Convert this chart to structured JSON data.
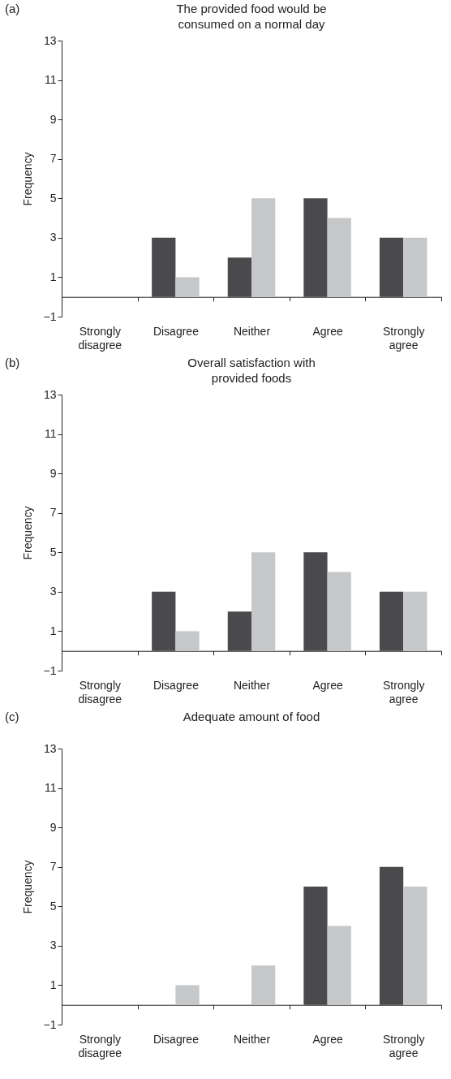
{
  "chart_data": [
    {
      "type": "bar",
      "title": "The provided food would be consumed on a normal day",
      "ylabel": "Frequency",
      "annotations": [
        "(a)"
      ],
      "categories": [
        "Strongly disagree",
        "Disagree",
        "Neither",
        "Agree",
        "Strongly agree"
      ],
      "series": [
        {
          "color": "#4a4a4c",
          "values": [
            0,
            3,
            2,
            5,
            3
          ]
        },
        {
          "color": "#c6c7c9",
          "values": [
            0,
            1,
            5,
            4,
            3
          ]
        }
      ],
      "ylim": [
        -1,
        13
      ],
      "yticks": [
        -1,
        1,
        3,
        5,
        7,
        9,
        11,
        13
      ],
      "grid": false,
      "legend": false
    },
    {
      "type": "bar",
      "title": "Overall satisfaction with provided foods",
      "ylabel": "Frequency",
      "annotations": [
        "(b)"
      ],
      "categories": [
        "Strongly disagree",
        "Disagree",
        "Neither",
        "Agree",
        "Strongly agree"
      ],
      "series": [
        {
          "color": "#4a4a4c",
          "values": [
            0,
            3,
            2,
            5,
            3
          ]
        },
        {
          "color": "#c6c7c9",
          "values": [
            0,
            1,
            5,
            4,
            3
          ]
        }
      ],
      "ylim": [
        -1,
        13
      ],
      "yticks": [
        -1,
        1,
        3,
        5,
        7,
        9,
        11,
        13
      ],
      "grid": false,
      "legend": false
    },
    {
      "type": "bar",
      "title": "Adequate amount of food",
      "ylabel": "Frequency",
      "annotations": [
        "(c)"
      ],
      "categories": [
        "Strongly disagree",
        "Disagree",
        "Neither",
        "Agree",
        "Strongly agree"
      ],
      "series": [
        {
          "color": "#4a4a4c",
          "values": [
            0,
            0,
            0,
            6,
            7
          ]
        },
        {
          "color": "#c6c7c9",
          "values": [
            0,
            1,
            2,
            4,
            6
          ]
        }
      ],
      "ylim": [
        -1,
        13
      ],
      "yticks": [
        -1,
        1,
        3,
        5,
        7,
        9,
        11,
        13
      ],
      "grid": false,
      "legend": false
    }
  ]
}
